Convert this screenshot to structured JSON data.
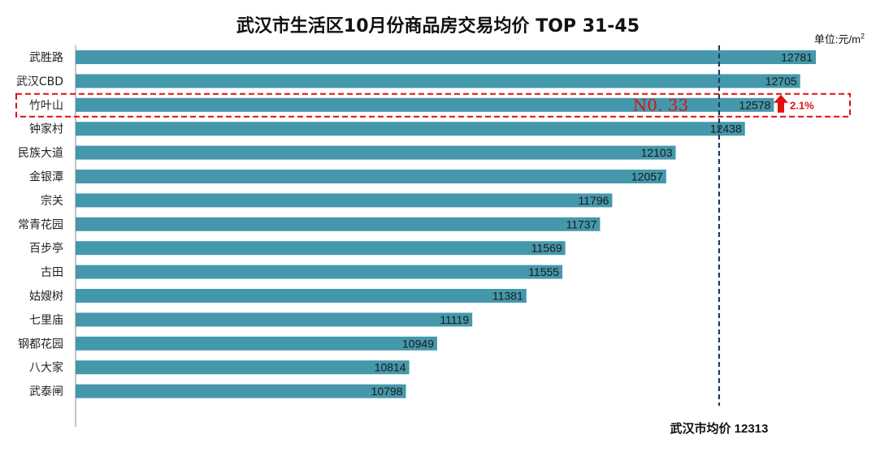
{
  "chart_data": {
    "type": "bar",
    "orientation": "horizontal",
    "title": "武汉市生活区10月份商品房交易均价  TOP 31-45",
    "unit_prefix": "单位:元/m",
    "unit_sup": "2",
    "categories": [
      "武胜路",
      "武汉CBD",
      "竹叶山",
      "钟家村",
      "民族大道",
      "金银潭",
      "宗关",
      "常青花园",
      "百步亭",
      "古田",
      "姑嫂树",
      "七里庙",
      "钢都花园",
      "八大家",
      "武泰闸"
    ],
    "values": [
      12781,
      12705,
      12578,
      12438,
      12103,
      12057,
      11796,
      11737,
      11569,
      11555,
      11381,
      11119,
      10949,
      10814,
      10798
    ],
    "xlim": [
      9200,
      13100
    ],
    "reference_line": {
      "label": "武汉市均价 12313",
      "value": 12313
    },
    "highlight": {
      "category": "竹叶山",
      "rank_label": "N0. 33",
      "change_label": "2.1%",
      "direction": "up"
    },
    "bar_color": "#4598ab",
    "highlight_color": "#e01010",
    "ref_color": "#1f3a5f"
  }
}
